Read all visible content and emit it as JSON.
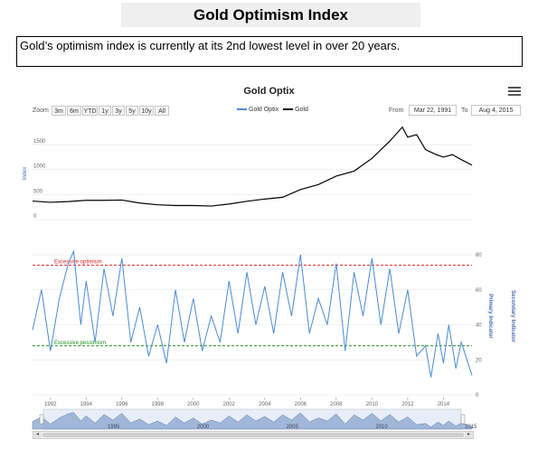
{
  "header": {
    "title": "Gold Optimism Index",
    "caption": "Gold’s optimism index is currently at its 2nd lowest level in over 20 years."
  },
  "chart_controls": {
    "zoom_label": "Zoom",
    "zoom_buttons": [
      "3m",
      "6m",
      "YTD",
      "1y",
      "3y",
      "5y",
      "10y",
      "All"
    ],
    "from_label": "From",
    "from_value": "Mar 22, 1991",
    "to_label": "To",
    "to_value": "Aug 4, 2015",
    "menu_icon": "hamburger-menu-icon"
  },
  "chart_data": [
    {
      "type": "line",
      "title": "Gold Optix",
      "ylabel": "Index",
      "ylim": [
        0,
        1900
      ],
      "yticks": [
        "0",
        "500",
        "1000",
        "1500"
      ],
      "legend": [
        "Gold Optix",
        "Gold"
      ],
      "legend_placement": "top-center",
      "colors": {
        "gold_optix": "#4a8bd4",
        "gold": "#000000"
      },
      "series": [
        {
          "name": "Gold",
          "x": [
            1991,
            1992,
            1993,
            1994,
            1995,
            1996,
            1997,
            1998,
            1999,
            2000,
            2001,
            2002,
            2003,
            2004,
            2005,
            2006,
            2007,
            2008,
            2009,
            2010,
            2011,
            2011.7,
            2012,
            2012.5,
            2013,
            2013.6,
            2014,
            2014.5,
            2015,
            2015.6
          ],
          "values": [
            370,
            345,
            360,
            385,
            385,
            390,
            330,
            295,
            280,
            280,
            270,
            310,
            365,
            410,
            445,
            600,
            700,
            870,
            970,
            1225,
            1570,
            1850,
            1650,
            1700,
            1400,
            1300,
            1250,
            1300,
            1200,
            1090
          ]
        }
      ]
    },
    {
      "type": "line",
      "title": "",
      "ylabel": "Primary Indicator",
      "ylabel_secondary": "Secondary Indicator",
      "ylim": [
        0,
        80
      ],
      "yticks": [
        "0",
        "20",
        "40",
        "60",
        "80"
      ],
      "xlim": [
        1991,
        2015.6
      ],
      "xticks": [
        "1992",
        "1994",
        "1996",
        "1998",
        "2000",
        "2002",
        "2004",
        "2006",
        "2008",
        "2010",
        "2012",
        "2014"
      ],
      "annotations": [
        {
          "text": "Excessive optimism",
          "y": 74,
          "color": "#e02020"
        },
        {
          "text": "Excessive pessimism",
          "y": 28,
          "color": "#1a8f1a"
        }
      ],
      "series": [
        {
          "name": "Gold Optix",
          "x": [
            1991,
            1991.5,
            1992,
            1992.5,
            1993,
            1993.3,
            1993.7,
            1994,
            1994.5,
            1995,
            1995.5,
            1996,
            1996.5,
            1997,
            1997.5,
            1998,
            1998.5,
            1999,
            1999.5,
            2000,
            2000.5,
            2001,
            2001.5,
            2002,
            2002.5,
            2003,
            2003.5,
            2004,
            2004.5,
            2005,
            2005.5,
            2006,
            2006.5,
            2007,
            2007.5,
            2008,
            2008.5,
            2009,
            2009.5,
            2010,
            2010.5,
            2011,
            2011.5,
            2012,
            2012.5,
            2013,
            2013.3,
            2013.7,
            2014,
            2014.3,
            2014.7,
            2015,
            2015.6
          ],
          "values": [
            37,
            60,
            25,
            55,
            75,
            82,
            40,
            65,
            30,
            72,
            45,
            78,
            30,
            50,
            22,
            40,
            18,
            60,
            30,
            55,
            25,
            45,
            30,
            65,
            35,
            70,
            40,
            62,
            35,
            70,
            45,
            80,
            35,
            55,
            40,
            75,
            25,
            70,
            45,
            78,
            40,
            72,
            35,
            60,
            22,
            28,
            10,
            35,
            18,
            40,
            15,
            30,
            11
          ]
        }
      ]
    },
    {
      "type": "area",
      "title": "",
      "x_labels": [
        "1995",
        "2000",
        "2005",
        "2010",
        "2015"
      ],
      "scrollbar_label": "III"
    }
  ]
}
